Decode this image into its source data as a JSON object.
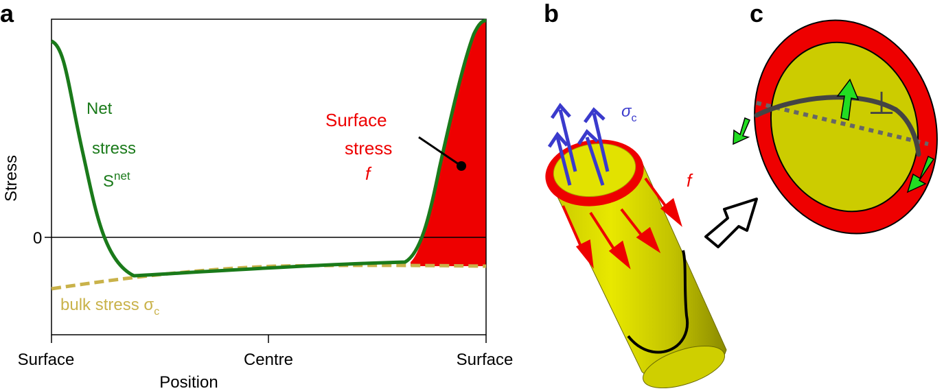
{
  "panels": {
    "a": "a",
    "b": "b",
    "c": "c"
  },
  "panel_a": {
    "ylabel": "Stress",
    "zero_tick": "0",
    "xlabel": "Position",
    "x_ticks": [
      "Surface",
      "Centre",
      "Surface"
    ],
    "net_label": {
      "line1": "Net",
      "line2": "stress",
      "line3_main": "S",
      "line3_sup": "net"
    },
    "surface_label": {
      "line1": "Surface",
      "line2": "stress",
      "line3": "f"
    },
    "bulk_label": {
      "main": "bulk stress σ",
      "sub": "c"
    }
  },
  "panel_b": {
    "sigma_main": "σ",
    "sigma_sub": "c",
    "f_label": "f"
  },
  "panel_c": {
    "perp_symbol": "⊥"
  },
  "colors": {
    "net": "#1a7a1a",
    "surface": "#ee0000",
    "bulk": "#c9b24a",
    "rod": "#e2e200",
    "arrow_blue": "#3a3acc",
    "arrow_green": "#22dd22"
  }
}
